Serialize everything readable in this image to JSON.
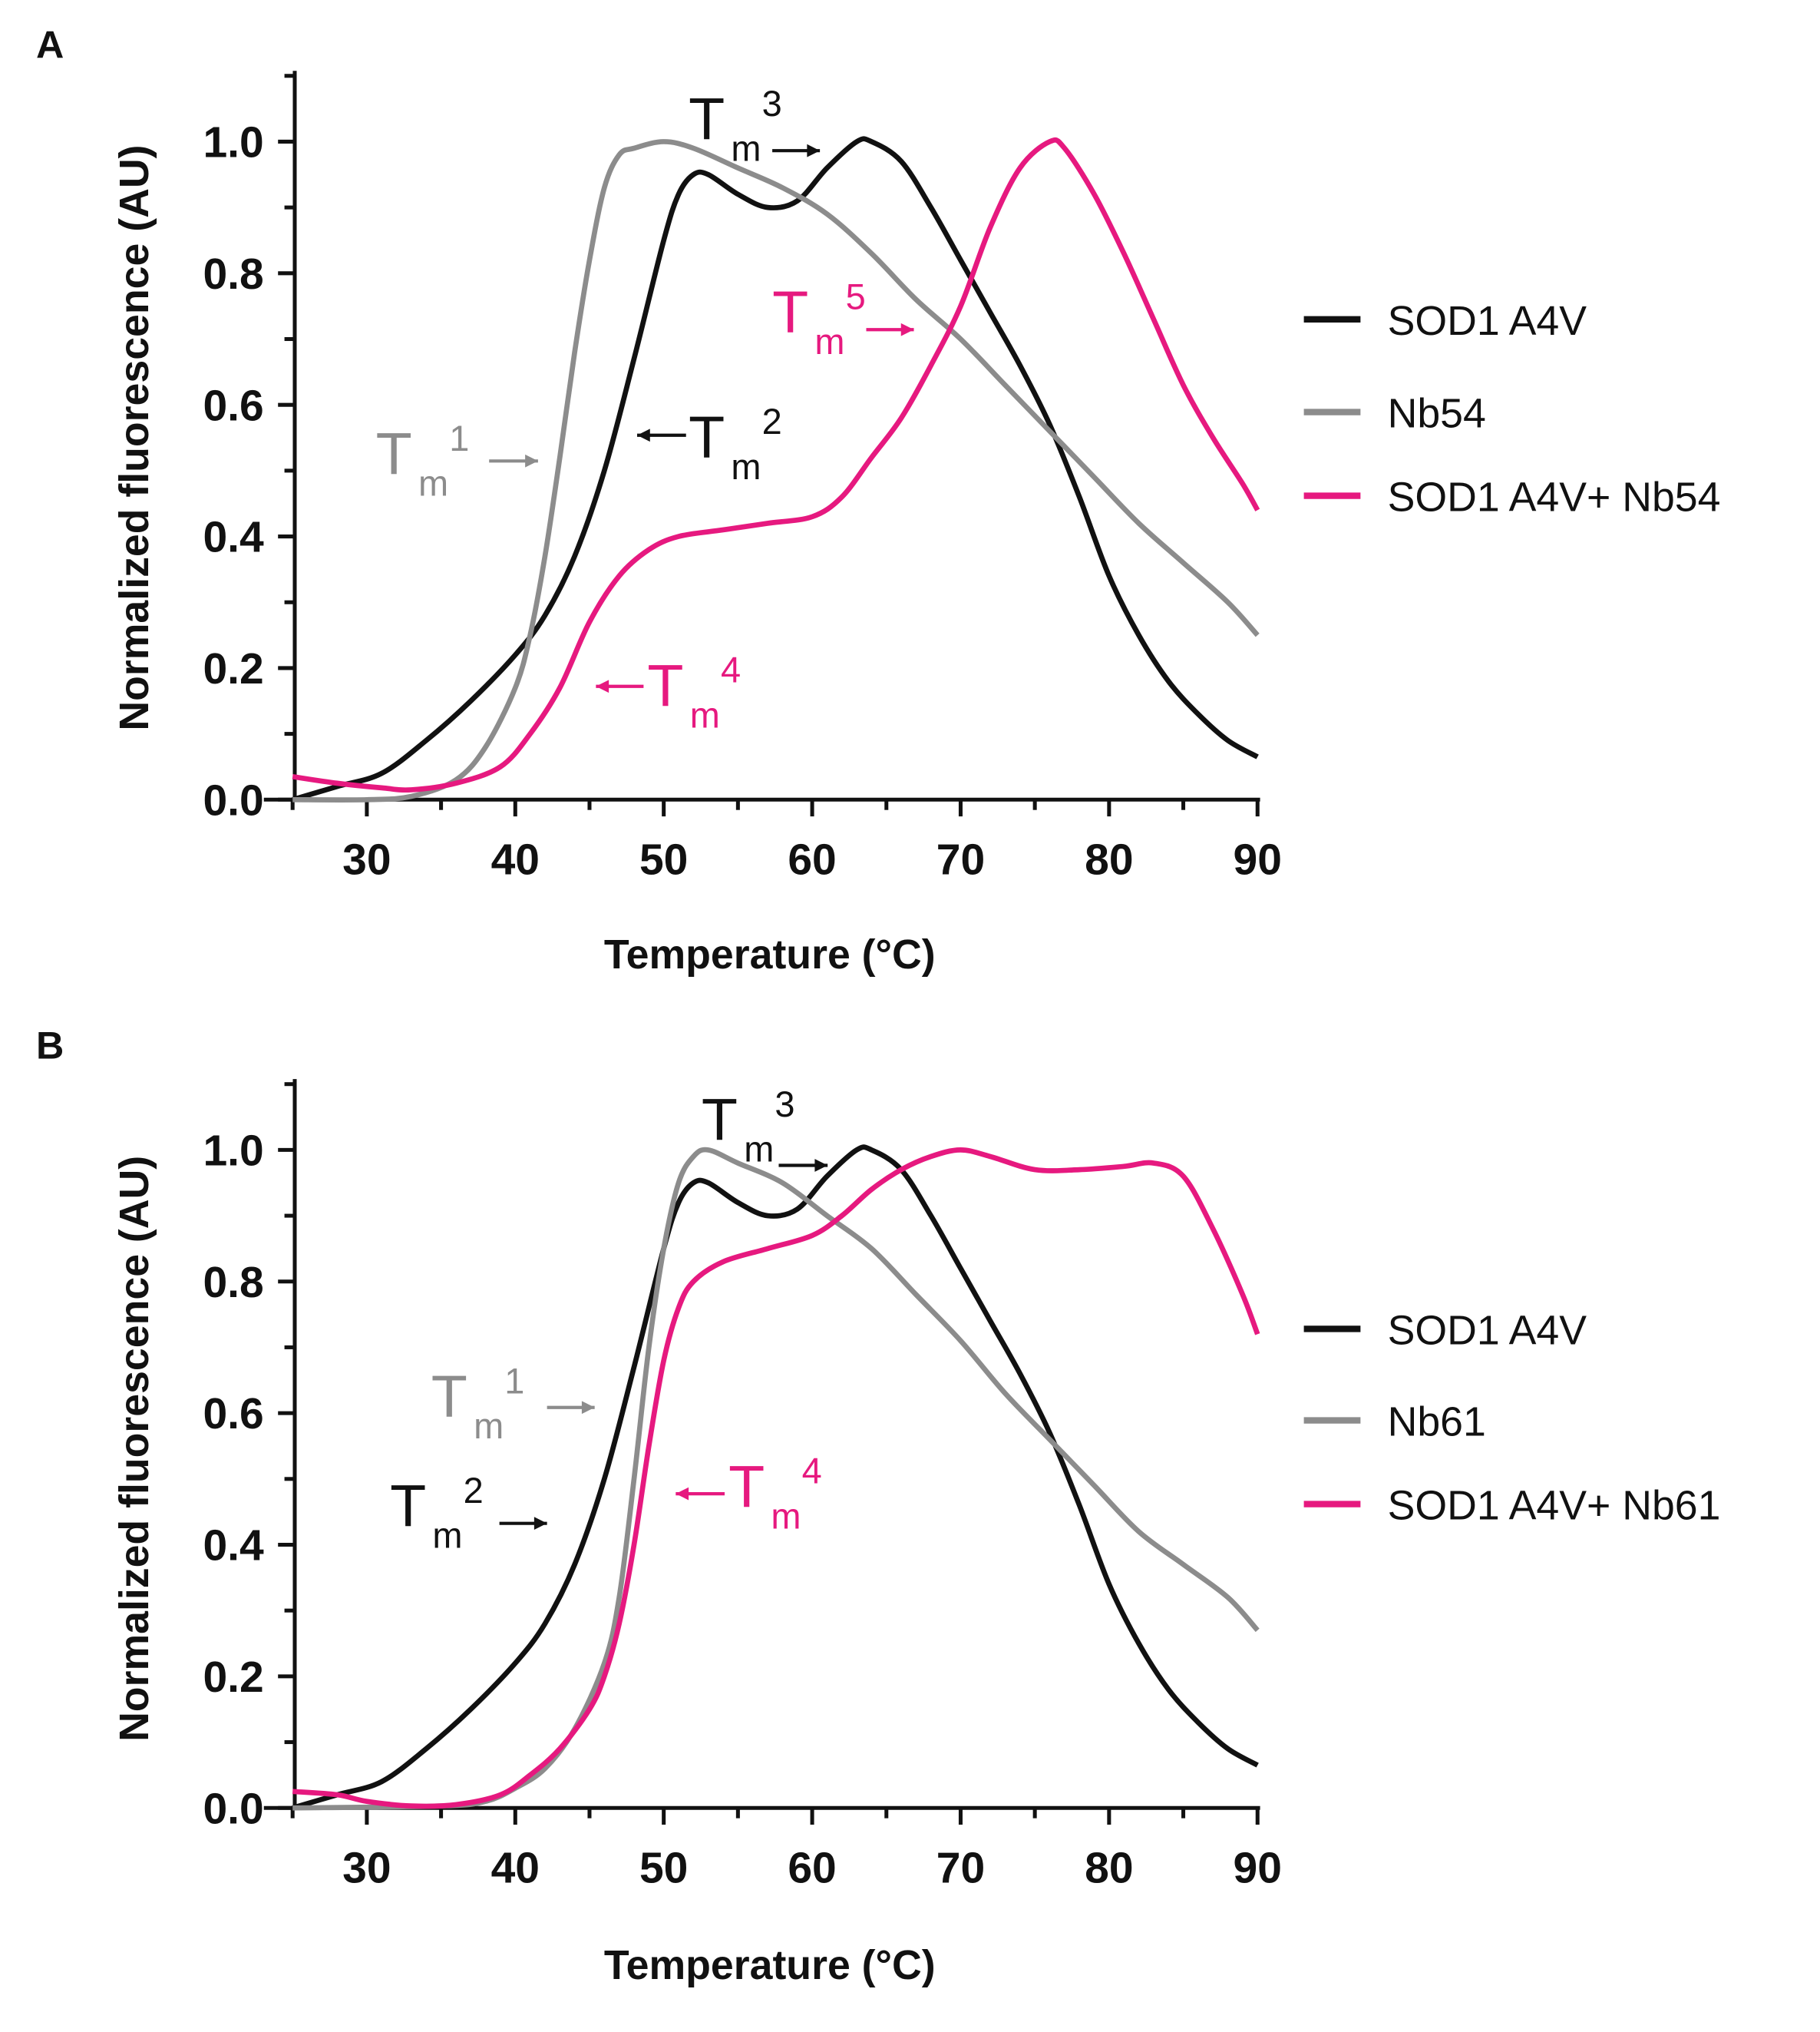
{
  "colors": {
    "sod1": "#111111",
    "nb": "#8c8c8c",
    "combo": "#e6197f"
  },
  "chart_data": [
    {
      "panel": "A",
      "type": "line",
      "xlabel": "Temperature (°C)",
      "ylabel": "Normalized fluorescence (AU)",
      "xlim": [
        25,
        90
      ],
      "ylim": [
        0,
        1.1
      ],
      "xticks": [
        "30",
        "40",
        "50",
        "60",
        "70",
        "80",
        "90"
      ],
      "yticks": [
        "0.0",
        "0.2",
        "0.4",
        "0.6",
        "0.8",
        "1.0"
      ],
      "legend_position": "right",
      "series": [
        {
          "name": "SOD1 A4V",
          "color_key": "sod1",
          "x": [
            25,
            28,
            31,
            34,
            37,
            40,
            42,
            44,
            46,
            48,
            50,
            51,
            52,
            53,
            55,
            57,
            59,
            61,
            63,
            64,
            66,
            68,
            70,
            72,
            74,
            76,
            78,
            80,
            82,
            84,
            86,
            88,
            90
          ],
          "y": [
            0,
            0.02,
            0.04,
            0.09,
            0.15,
            0.22,
            0.28,
            0.37,
            0.5,
            0.67,
            0.85,
            0.92,
            0.95,
            0.95,
            0.92,
            0.9,
            0.91,
            0.96,
            1.0,
            1.0,
            0.97,
            0.9,
            0.82,
            0.74,
            0.66,
            0.57,
            0.46,
            0.34,
            0.25,
            0.18,
            0.13,
            0.09,
            0.065
          ]
        },
        {
          "name": "Nb54",
          "color_key": "nb",
          "x": [
            25,
            30,
            33,
            36,
            38,
            40,
            41,
            42,
            43,
            44,
            45,
            46,
            47,
            48,
            50,
            52,
            55,
            58,
            61,
            64,
            67,
            70,
            73,
            76,
            79,
            82,
            85,
            88,
            90
          ],
          "y": [
            0,
            0,
            0.005,
            0.03,
            0.08,
            0.17,
            0.25,
            0.37,
            0.52,
            0.68,
            0.82,
            0.93,
            0.98,
            0.99,
            1.0,
            0.99,
            0.96,
            0.93,
            0.89,
            0.83,
            0.76,
            0.7,
            0.63,
            0.56,
            0.49,
            0.42,
            0.36,
            0.3,
            0.25
          ]
        },
        {
          "name": "SOD1 A4V+ Nb54",
          "color_key": "combo",
          "x": [
            25,
            28,
            31,
            33,
            36,
            39,
            41,
            43,
            45,
            47,
            49,
            51,
            54,
            57,
            60,
            62,
            64,
            66,
            68,
            70,
            72,
            74,
            76,
            77,
            79,
            81,
            83,
            85,
            87,
            89,
            90
          ],
          "y": [
            0.035,
            0.025,
            0.018,
            0.015,
            0.025,
            0.05,
            0.1,
            0.17,
            0.27,
            0.34,
            0.38,
            0.4,
            0.41,
            0.42,
            0.43,
            0.46,
            0.52,
            0.58,
            0.66,
            0.75,
            0.87,
            0.96,
            1.0,
            0.99,
            0.92,
            0.83,
            0.73,
            0.63,
            0.55,
            0.48,
            0.44
          ]
        }
      ],
      "annotations": [
        {
          "label": "T",
          "sub": "m",
          "sup": "3",
          "color_key": "sod1"
        },
        {
          "label": "T",
          "sub": "m",
          "sup": "5",
          "color_key": "combo"
        },
        {
          "label": "T",
          "sub": "m",
          "sup": "2",
          "color_key": "sod1"
        },
        {
          "label": "T",
          "sub": "m",
          "sup": "1",
          "color_key": "nb"
        },
        {
          "label": "T",
          "sub": "m",
          "sup": "4",
          "color_key": "combo"
        }
      ]
    },
    {
      "panel": "B",
      "type": "line",
      "xlabel": "Temperature (°C)",
      "ylabel": "Normalized fluorescence (AU)",
      "xlim": [
        25,
        90
      ],
      "ylim": [
        0,
        1.1
      ],
      "xticks": [
        "30",
        "40",
        "50",
        "60",
        "70",
        "80",
        "90"
      ],
      "yticks": [
        "0.0",
        "0.2",
        "0.4",
        "0.6",
        "0.8",
        "1.0"
      ],
      "legend_position": "right",
      "series": [
        {
          "name": "SOD1 A4V",
          "color_key": "sod1",
          "x": [
            25,
            28,
            31,
            34,
            37,
            40,
            42,
            44,
            46,
            48,
            50,
            51,
            52,
            53,
            55,
            57,
            59,
            61,
            63,
            64,
            66,
            68,
            70,
            72,
            74,
            76,
            78,
            80,
            82,
            84,
            86,
            88,
            90
          ],
          "y": [
            0,
            0.02,
            0.04,
            0.09,
            0.15,
            0.22,
            0.28,
            0.37,
            0.5,
            0.67,
            0.85,
            0.92,
            0.95,
            0.95,
            0.92,
            0.9,
            0.91,
            0.96,
            1.0,
            1.0,
            0.97,
            0.9,
            0.82,
            0.74,
            0.66,
            0.57,
            0.46,
            0.34,
            0.25,
            0.18,
            0.13,
            0.09,
            0.065
          ]
        },
        {
          "name": "Nb61",
          "color_key": "nb",
          "x": [
            25,
            35,
            38,
            40,
            42,
            44,
            46,
            47,
            48,
            49,
            50,
            51,
            52,
            53,
            55,
            58,
            61,
            64,
            67,
            70,
            73,
            76,
            79,
            82,
            85,
            88,
            90
          ],
          "y": [
            0,
            0.003,
            0.01,
            0.03,
            0.06,
            0.12,
            0.22,
            0.32,
            0.5,
            0.7,
            0.85,
            0.95,
            0.99,
            1.0,
            0.98,
            0.95,
            0.9,
            0.85,
            0.78,
            0.71,
            0.63,
            0.56,
            0.49,
            0.42,
            0.37,
            0.32,
            0.27
          ]
        },
        {
          "name": "SOD1 A4V+ Nb61",
          "color_key": "combo",
          "x": [
            25,
            28,
            30,
            33,
            36,
            39,
            41,
            43,
            45,
            46,
            47,
            48,
            49,
            50,
            51,
            52,
            54,
            57,
            60,
            62,
            64,
            66,
            68,
            70,
            72,
            75,
            78,
            81,
            83,
            85,
            87,
            89,
            90
          ],
          "y": [
            0.025,
            0.02,
            0.01,
            0.003,
            0.005,
            0.02,
            0.05,
            0.09,
            0.15,
            0.2,
            0.28,
            0.4,
            0.55,
            0.68,
            0.76,
            0.8,
            0.83,
            0.85,
            0.87,
            0.9,
            0.94,
            0.97,
            0.99,
            1.0,
            0.99,
            0.97,
            0.97,
            0.975,
            0.98,
            0.96,
            0.88,
            0.78,
            0.72
          ]
        }
      ],
      "annotations": [
        {
          "label": "T",
          "sub": "m",
          "sup": "3",
          "color_key": "sod1"
        },
        {
          "label": "T",
          "sub": "m",
          "sup": "1",
          "color_key": "nb"
        },
        {
          "label": "T",
          "sub": "m",
          "sup": "2",
          "color_key": "sod1"
        },
        {
          "label": "T",
          "sub": "m",
          "sup": "4",
          "color_key": "combo"
        }
      ]
    }
  ]
}
